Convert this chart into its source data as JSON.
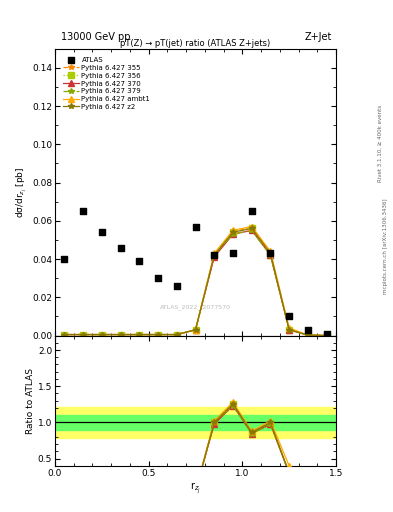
{
  "title_top": "13000 GeV pp",
  "title_right": "Z+Jet",
  "plot_title": "pT(Z) → pT(jet) ratio (ATLAS Z+jets)",
  "ylabel_main": "dσ/dr$_{z_j}$ [pb]",
  "ylabel_ratio": "Ratio to ATLAS",
  "xlabel": "r$_{z_j}$",
  "watermark": "ATLAS_2022_I2077570",
  "right_label": "mcplots.cern.ch [arXiv:1306.3436]",
  "rivet_label": "Rivet 3.1.10, ≥ 400k events",
  "xlim": [
    0,
    1.5
  ],
  "ylim_main": [
    0,
    0.15
  ],
  "ylim_ratio": [
    0.4,
    2.2
  ],
  "atlas_x": [
    0.05,
    0.15,
    0.25,
    0.35,
    0.45,
    0.55,
    0.65,
    0.75,
    0.85,
    0.95,
    1.05,
    1.15,
    1.25,
    1.35,
    1.45
  ],
  "atlas_y": [
    0.04,
    0.065,
    0.054,
    0.046,
    0.039,
    0.03,
    0.026,
    0.057,
    0.042,
    0.043,
    0.065,
    0.043,
    0.01,
    0.003,
    0.001
  ],
  "mc_x": [
    0.05,
    0.15,
    0.25,
    0.35,
    0.45,
    0.55,
    0.65,
    0.75,
    0.85,
    0.95,
    1.05,
    1.15,
    1.25,
    1.35,
    1.45
  ],
  "p355_y": [
    0.0005,
    0.0005,
    0.0005,
    0.0005,
    0.0005,
    0.0005,
    0.0005,
    0.003,
    0.042,
    0.054,
    0.057,
    0.043,
    0.003,
    0.0002,
    0.0
  ],
  "p355_color": "#FF8800",
  "p355_label": "Pythia 6.427 355",
  "p355_linestyle": "--",
  "p355_marker": "*",
  "p355_markersize": 4,
  "p356_y": [
    0.0005,
    0.0005,
    0.0005,
    0.0005,
    0.0005,
    0.0005,
    0.0005,
    0.003,
    0.042,
    0.054,
    0.056,
    0.042,
    0.003,
    0.0002,
    0.0
  ],
  "p356_color": "#AACC00",
  "p356_label": "Pythia 6.427 356",
  "p356_linestyle": ":",
  "p356_marker": "s",
  "p356_markersize": 4,
  "p370_y": [
    0.0005,
    0.0005,
    0.0005,
    0.0005,
    0.0005,
    0.0005,
    0.0005,
    0.003,
    0.041,
    0.053,
    0.055,
    0.042,
    0.003,
    0.0002,
    0.0
  ],
  "p370_color": "#CC3333",
  "p370_label": "Pythia 6.427 370",
  "p370_linestyle": "-",
  "p370_marker": "^",
  "p370_markersize": 4,
  "p379_y": [
    0.0005,
    0.0005,
    0.0005,
    0.0005,
    0.0005,
    0.0005,
    0.0005,
    0.003,
    0.042,
    0.053,
    0.055,
    0.042,
    0.003,
    0.0002,
    0.0
  ],
  "p379_color": "#88AA00",
  "p379_label": "Pythia 6.427 379",
  "p379_linestyle": "-.",
  "p379_marker": "*",
  "p379_markersize": 4,
  "pambt1_y": [
    0.0005,
    0.0005,
    0.0005,
    0.0005,
    0.0005,
    0.0005,
    0.0005,
    0.003,
    0.043,
    0.055,
    0.057,
    0.044,
    0.004,
    0.0002,
    0.0
  ],
  "pambt1_color": "#FFAA00",
  "pambt1_label": "Pythia 6.427 ambt1",
  "pambt1_linestyle": "-",
  "pambt1_marker": "^",
  "pambt1_markersize": 4,
  "pz2_y": [
    0.0005,
    0.0005,
    0.0005,
    0.0005,
    0.0005,
    0.0005,
    0.0005,
    0.003,
    0.042,
    0.054,
    0.056,
    0.043,
    0.003,
    0.0002,
    0.0
  ],
  "pz2_color": "#887700",
  "pz2_label": "Pythia 6.427 z2",
  "pz2_linestyle": "-",
  "pz2_marker": "*",
  "pz2_markersize": 4,
  "band_green_lo": 0.9,
  "band_green_hi": 1.1,
  "band_yellow_lo": 0.78,
  "band_yellow_hi": 1.22,
  "ratio_line": 1.0
}
